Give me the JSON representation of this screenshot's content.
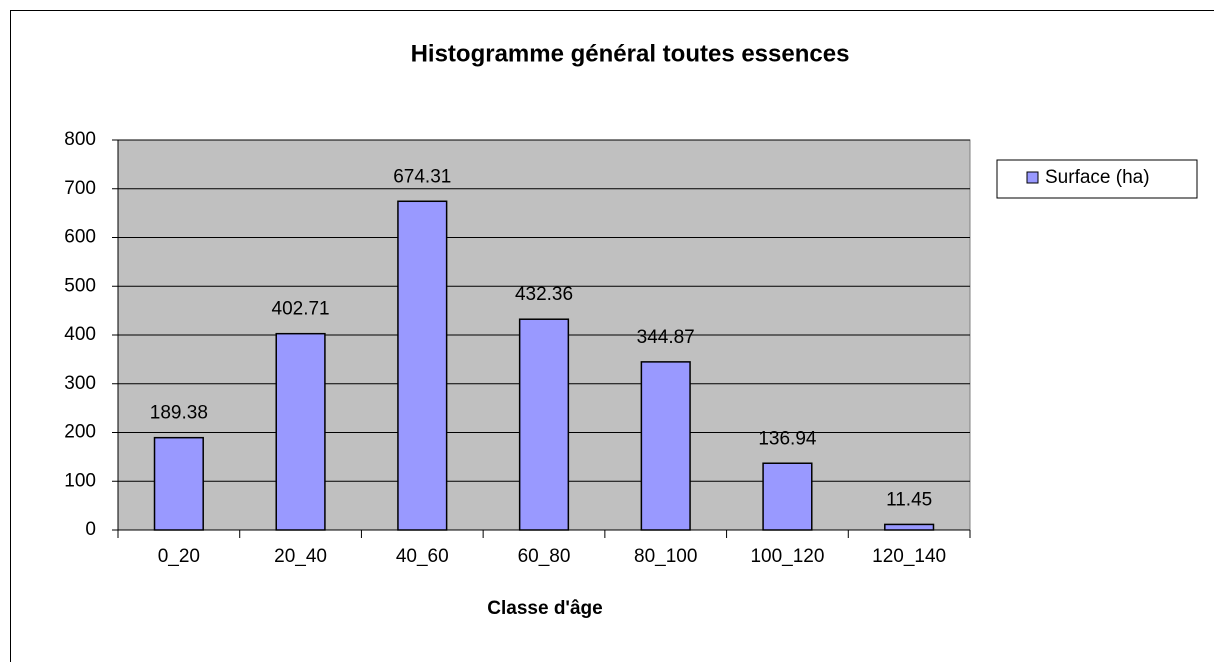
{
  "chart_data": {
    "type": "bar",
    "title": "Histogramme général toutes essences",
    "x_label": "Classe d'âge",
    "categories": [
      "0_20",
      "20_40",
      "40_60",
      "60_80",
      "80_100",
      "100_120",
      "120_140"
    ],
    "series": [
      {
        "name": "Surface (ha)",
        "color": "#9999ff",
        "values": [
          189.38,
          402.71,
          674.31,
          432.36,
          344.87,
          136.94,
          11.45
        ]
      }
    ],
    "ylim": [
      0,
      800
    ],
    "yticks": [
      0,
      100,
      200,
      300,
      400,
      500,
      600,
      700,
      800
    ],
    "grid": true,
    "legend": "right"
  }
}
